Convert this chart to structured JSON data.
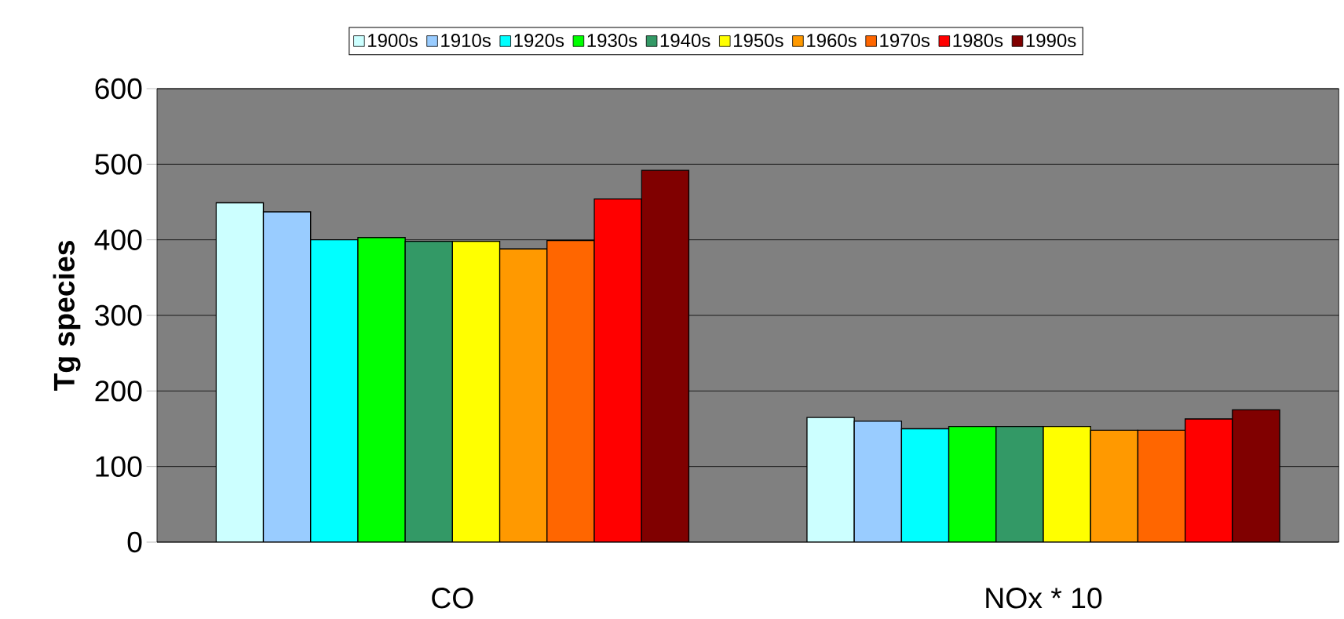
{
  "chart_data": {
    "type": "bar",
    "ylabel": "Tg species",
    "categories": [
      "CO",
      "NOx * 10"
    ],
    "series": [
      {
        "name": "1900s",
        "color": "#ccffff",
        "values": [
          449,
          165
        ]
      },
      {
        "name": "1910s",
        "color": "#99ccff",
        "values": [
          437,
          160
        ]
      },
      {
        "name": "1920s",
        "color": "#00ffff",
        "values": [
          400,
          150
        ]
      },
      {
        "name": "1930s",
        "color": "#00ff00",
        "values": [
          403,
          153
        ]
      },
      {
        "name": "1940s",
        "color": "#339966",
        "values": [
          398,
          153
        ]
      },
      {
        "name": "1950s",
        "color": "#ffff00",
        "values": [
          398,
          153
        ]
      },
      {
        "name": "1960s",
        "color": "#ff9900",
        "values": [
          388,
          148
        ]
      },
      {
        "name": "1970s",
        "color": "#ff6600",
        "values": [
          399,
          148
        ]
      },
      {
        "name": "1980s",
        "color": "#ff0000",
        "values": [
          454,
          163
        ]
      },
      {
        "name": "1990s",
        "color": "#800000",
        "values": [
          492,
          175
        ]
      }
    ],
    "ylim": [
      0,
      600
    ],
    "yticks": [
      0,
      100,
      200,
      300,
      400,
      500,
      600
    ],
    "grid": "y",
    "legend": "top"
  }
}
